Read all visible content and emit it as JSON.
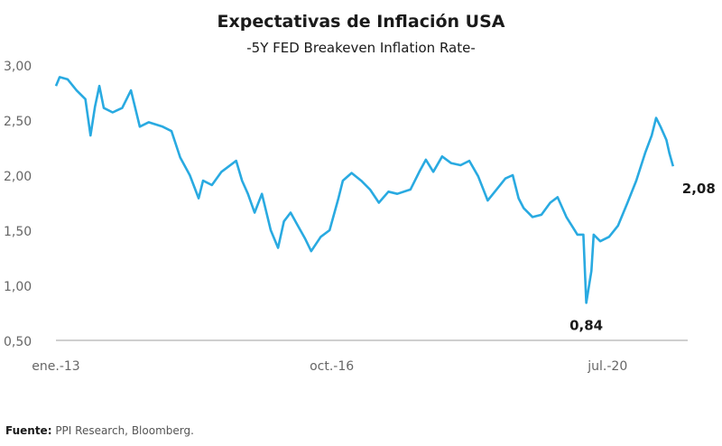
{
  "chart_data": {
    "type": "line",
    "title": "Expectativas de Inflación USA",
    "subtitle": "-5Y FED Breakeven Inflation Rate-",
    "xlabel": "",
    "ylabel": "",
    "ylim": [
      0.5,
      3.0
    ],
    "xlim": [
      2013.0,
      2021.6
    ],
    "grid": false,
    "y_ticks": [
      {
        "v": 3.0,
        "label": "3,00"
      },
      {
        "v": 2.5,
        "label": "2,50"
      },
      {
        "v": 2.0,
        "label": "2,00"
      },
      {
        "v": 1.5,
        "label": "1,50"
      },
      {
        "v": 1.0,
        "label": "1,00"
      },
      {
        "v": 0.5,
        "label": "0,50"
      }
    ],
    "x_ticks": [
      {
        "v": 2013.0,
        "label": "ene.-13"
      },
      {
        "v": 2016.75,
        "label": "oct.-16"
      },
      {
        "v": 2020.5,
        "label": "jul.-20"
      }
    ],
    "line_color": "#29aae1",
    "annotations": [
      {
        "x": 2020.21,
        "y": 0.84,
        "label": "0,84",
        "position": "below"
      },
      {
        "x": 2021.39,
        "y": 2.08,
        "label": "2,08",
        "position": "right-below"
      }
    ],
    "series": [
      {
        "name": "5Y FED Breakeven Inflation Rate",
        "x": [
          2013.0,
          2013.05,
          2013.16,
          2013.28,
          2013.4,
          2013.47,
          2013.53,
          2013.59,
          2013.65,
          2013.77,
          2013.9,
          2014.02,
          2014.14,
          2014.26,
          2014.45,
          2014.57,
          2014.69,
          2014.82,
          2014.94,
          2015.0,
          2015.12,
          2015.25,
          2015.45,
          2015.53,
          2015.61,
          2015.7,
          2015.8,
          2015.92,
          2016.02,
          2016.1,
          2016.19,
          2016.29,
          2016.39,
          2016.47,
          2016.6,
          2016.72,
          2016.84,
          2016.9,
          2017.02,
          2017.15,
          2017.27,
          2017.39,
          2017.52,
          2017.64,
          2017.82,
          2017.94,
          2018.03,
          2018.13,
          2018.25,
          2018.37,
          2018.5,
          2018.62,
          2018.74,
          2018.87,
          2018.99,
          2019.11,
          2019.21,
          2019.29,
          2019.36,
          2019.48,
          2019.6,
          2019.72,
          2019.82,
          2019.94,
          2020.09,
          2020.17,
          2020.21,
          2020.28,
          2020.31,
          2020.4,
          2020.52,
          2020.64,
          2020.77,
          2020.89,
          2021.01,
          2021.1,
          2021.16,
          2021.22,
          2021.3,
          2021.34,
          2021.39
        ],
        "values": [
          2.81,
          2.89,
          2.87,
          2.77,
          2.69,
          2.36,
          2.62,
          2.81,
          2.61,
          2.57,
          2.61,
          2.77,
          2.44,
          2.48,
          2.44,
          2.4,
          2.16,
          2.0,
          1.79,
          1.95,
          1.91,
          2.03,
          2.13,
          1.95,
          1.83,
          1.66,
          1.83,
          1.5,
          1.34,
          1.58,
          1.66,
          1.54,
          1.42,
          1.31,
          1.44,
          1.5,
          1.79,
          1.95,
          2.02,
          1.95,
          1.87,
          1.75,
          1.85,
          1.83,
          1.87,
          2.03,
          2.14,
          2.03,
          2.17,
          2.11,
          2.09,
          2.13,
          1.99,
          1.77,
          1.87,
          1.97,
          2.0,
          1.79,
          1.7,
          1.62,
          1.64,
          1.75,
          1.8,
          1.62,
          1.46,
          1.46,
          0.84,
          1.13,
          1.46,
          1.4,
          1.44,
          1.54,
          1.75,
          1.95,
          2.2,
          2.36,
          2.52,
          2.44,
          2.32,
          2.2,
          2.08
        ]
      }
    ]
  },
  "source": {
    "label": "Fuente:",
    "text": " PPI Research, Bloomberg."
  }
}
